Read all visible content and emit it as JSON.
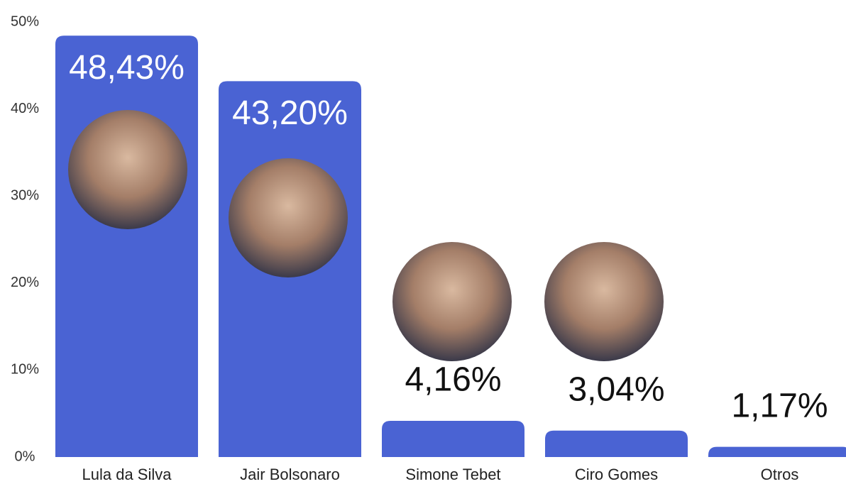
{
  "chart_data": {
    "type": "bar",
    "categories": [
      "Lula da Silva",
      "Jair Bolsonaro",
      "Simone Tebet",
      "Ciro Gomes",
      "Otros"
    ],
    "values": [
      48.43,
      43.2,
      4.16,
      3.04,
      1.17
    ],
    "value_labels": [
      "48,43%",
      "43,20%",
      "4,16%",
      "3,04%",
      "1,17%"
    ],
    "color": "#4a63d3",
    "ylim": [
      0,
      50
    ],
    "yticks": [
      {
        "value": 0,
        "label": "0%"
      },
      {
        "value": 10,
        "label": "10%"
      },
      {
        "value": 20,
        "label": "20%"
      },
      {
        "value": 30,
        "label": "30%"
      },
      {
        "value": 40,
        "label": "40%"
      },
      {
        "value": 50,
        "label": "50%"
      }
    ],
    "grid": false
  }
}
